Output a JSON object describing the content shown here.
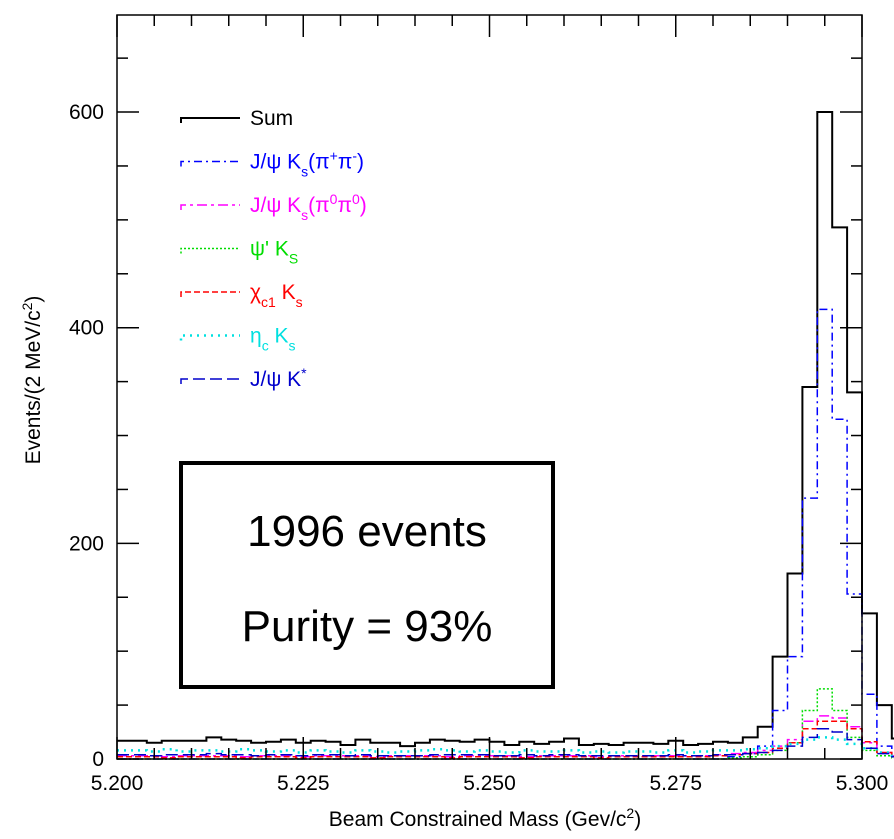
{
  "chart_data": {
    "type": "histogram",
    "xlabel": "Beam Constrained Mass (Gev/c",
    "xlabel_sup": "2",
    "xlabel_end": ")",
    "ylabel": "Events/(2 MeV/c",
    "ylabel_sup": "2",
    "ylabel_end": ")",
    "xlim": [
      5.2,
      5.3
    ],
    "ylim": [
      0,
      690
    ],
    "xticks": [
      "5.200",
      "5.225",
      "5.250",
      "5.275",
      "5.300"
    ],
    "xtick_values": [
      5.2,
      5.225,
      5.25,
      5.275,
      5.3
    ],
    "yticks": [
      "0",
      "200",
      "400",
      "600"
    ],
    "ytick_values": [
      0,
      200,
      400,
      600
    ],
    "bin_width": 0.002,
    "bin_start": 5.2,
    "legend_position": "top-left",
    "legend": [
      {
        "text": "Sum",
        "sub": "",
        "sup": "",
        "tail": "",
        "color": "#000000"
      },
      {
        "text": "J/ψ K",
        "sub": "s",
        "tail": "(π",
        "sup": "+",
        "tail2": "π",
        "sup2": "-",
        "end": ")",
        "color": "#0000ff"
      },
      {
        "text": "J/ψ K",
        "sub": "s",
        "tail": "(π",
        "sup": "0",
        "tail2": "π",
        "sup2": "0",
        "end": ")",
        "color": "#ff00ff"
      },
      {
        "text": "ψ' K",
        "sub": "S",
        "color": "#00dd00"
      },
      {
        "text": "χ",
        "sub": "c1",
        "tail": " K",
        "sub2": "s",
        "color": "#ff0000"
      },
      {
        "text": "η",
        "sub": "c",
        "tail": " K",
        "sub2": "s",
        "color": "#00e0e0"
      },
      {
        "text": "J/ψ K",
        "sup": "*",
        "color": "#0000cc"
      }
    ],
    "annotation": {
      "line1": "1996 events",
      "line2": "Purity = 93%"
    },
    "series": [
      {
        "name": "Sum",
        "color": "#000000",
        "dash": "",
        "width": 2,
        "values": [
          17,
          17,
          15,
          17,
          17,
          17,
          20,
          18,
          17,
          15,
          16,
          18,
          15,
          17,
          16,
          13,
          18,
          15,
          15,
          12,
          15,
          18,
          17,
          16,
          18,
          16,
          13,
          16,
          14,
          16,
          19,
          13,
          14,
          13,
          15,
          15,
          14,
          17,
          13,
          14,
          16,
          15,
          20,
          30,
          95,
          172,
          345,
          600,
          493,
          340,
          135,
          50,
          19,
          8,
          0
        ]
      },
      {
        "name": "J/ψ K_s(π+π-)",
        "color": "#0000ff",
        "dash": "8,4,2,4",
        "width": 1.5,
        "values": [
          0,
          0,
          0,
          0,
          0,
          0,
          0,
          0,
          0,
          0,
          0,
          0,
          0,
          0,
          0,
          0,
          0,
          0,
          0,
          0,
          0,
          0,
          0,
          0,
          0,
          0,
          0,
          0,
          0,
          0,
          0,
          0,
          0,
          0,
          0,
          0,
          0,
          0,
          0,
          0,
          0,
          2,
          5,
          12,
          45,
          95,
          242,
          417,
          315,
          153,
          60,
          12,
          3,
          0,
          0
        ]
      },
      {
        "name": "J/ψ K_s(π0π0)",
        "color": "#ff00ff",
        "dash": "10,4,3,4",
        "width": 1.5,
        "values": [
          3,
          3,
          3,
          2,
          3,
          3,
          3,
          3,
          2,
          3,
          3,
          3,
          2,
          3,
          3,
          3,
          3,
          2,
          3,
          3,
          3,
          3,
          2,
          3,
          3,
          3,
          3,
          2,
          3,
          3,
          3,
          3,
          2,
          3,
          3,
          3,
          3,
          3,
          3,
          3,
          4,
          5,
          6,
          8,
          12,
          18,
          35,
          40,
          38,
          30,
          15,
          6,
          3,
          0,
          0
        ]
      },
      {
        "name": "ψ' K_S",
        "color": "#00dd00",
        "dash": "2,2",
        "width": 1.5,
        "values": [
          0,
          0,
          0,
          0,
          0,
          0,
          0,
          0,
          0,
          0,
          0,
          0,
          0,
          0,
          0,
          0,
          0,
          0,
          0,
          0,
          0,
          0,
          0,
          0,
          0,
          0,
          0,
          0,
          0,
          0,
          0,
          0,
          0,
          0,
          0,
          0,
          0,
          0,
          0,
          0,
          0,
          1,
          2,
          4,
          8,
          15,
          45,
          65,
          45,
          20,
          8,
          3,
          1,
          0,
          0
        ]
      },
      {
        "name": "χ_c1 K_s",
        "color": "#ff0000",
        "dash": "6,3",
        "width": 1.5,
        "values": [
          2,
          2,
          2,
          1,
          2,
          2,
          2,
          2,
          1,
          2,
          2,
          2,
          1,
          2,
          2,
          2,
          2,
          1,
          2,
          2,
          2,
          2,
          1,
          2,
          2,
          2,
          2,
          1,
          2,
          2,
          2,
          2,
          1,
          2,
          2,
          2,
          2,
          2,
          2,
          2,
          3,
          4,
          5,
          6,
          10,
          15,
          28,
          35,
          35,
          28,
          16,
          6,
          2,
          0,
          0
        ]
      },
      {
        "name": "η_c K_s",
        "color": "#00e0e0",
        "dash": "2,5",
        "width": 2.5,
        "values": [
          8,
          8,
          7,
          9,
          7,
          8,
          8,
          7,
          9,
          8,
          7,
          8,
          6,
          8,
          7,
          6,
          8,
          7,
          6,
          7,
          8,
          9,
          8,
          7,
          8,
          7,
          6,
          8,
          7,
          7,
          8,
          6,
          7,
          6,
          7,
          7,
          6,
          8,
          6,
          7,
          8,
          8,
          9,
          10,
          12,
          14,
          18,
          20,
          18,
          14,
          10,
          6,
          3,
          0,
          0
        ]
      },
      {
        "name": "J/ψ K*",
        "color": "#0000cc",
        "dash": "12,5",
        "width": 1.5,
        "values": [
          4,
          4,
          3,
          4,
          4,
          4,
          5,
          4,
          4,
          3,
          4,
          4,
          3,
          4,
          4,
          3,
          4,
          3,
          3,
          3,
          3,
          4,
          4,
          4,
          4,
          3,
          3,
          4,
          3,
          4,
          4,
          3,
          3,
          3,
          3,
          3,
          3,
          4,
          3,
          3,
          4,
          4,
          5,
          6,
          8,
          12,
          20,
          28,
          25,
          18,
          10,
          5,
          2,
          0,
          0
        ]
      }
    ]
  }
}
